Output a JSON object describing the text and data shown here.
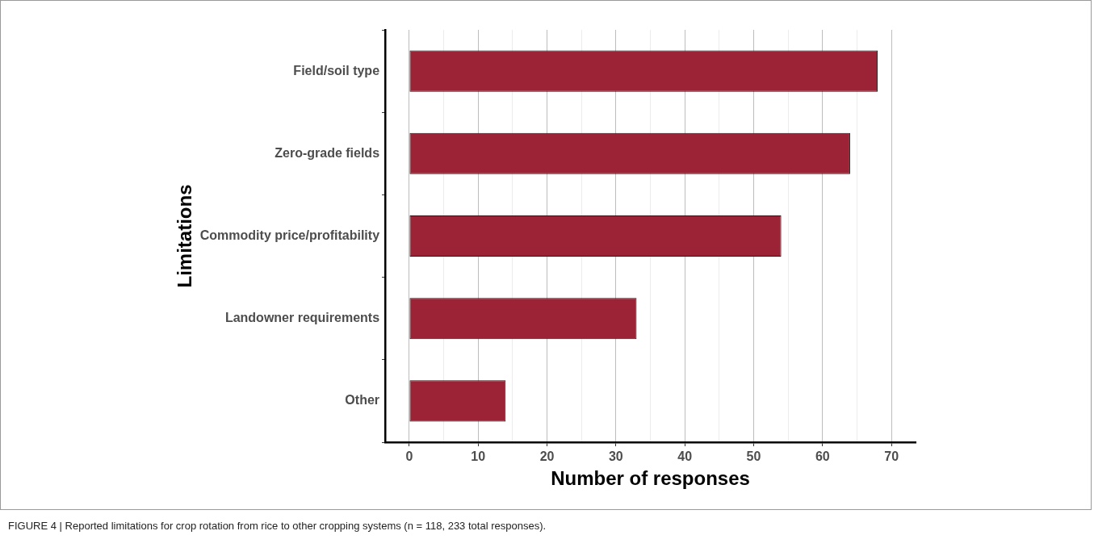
{
  "chart_data": {
    "type": "bar",
    "orientation": "horizontal",
    "categories": [
      "Field/soil type",
      "Zero-grade fields",
      "Commodity price/profitability",
      "Landowner requirements",
      "Other"
    ],
    "values": [
      68,
      64,
      54,
      33,
      14
    ],
    "color": "#9b2335",
    "xlim": [
      -3.5,
      73.5
    ],
    "xticks": [
      0,
      {
        "value": 5,
        "label": null
      },
      10,
      {
        "value": 15,
        "label": null
      },
      20,
      {
        "value": 25,
        "label": null
      },
      30,
      {
        "value": 35,
        "label": null
      },
      40,
      {
        "value": 45,
        "label": null
      },
      50,
      {
        "value": 55,
        "label": null
      },
      60,
      {
        "value": 65,
        "label": null
      },
      70
    ],
    "xlabel": "Number of responses",
    "ylabel": "Limitations",
    "grid": "x",
    "annotations": [
      "FIGURE 4 | Reported limitations for crop rotation from rice to other cropping systems (n = 118, 233 total responses)."
    ]
  }
}
